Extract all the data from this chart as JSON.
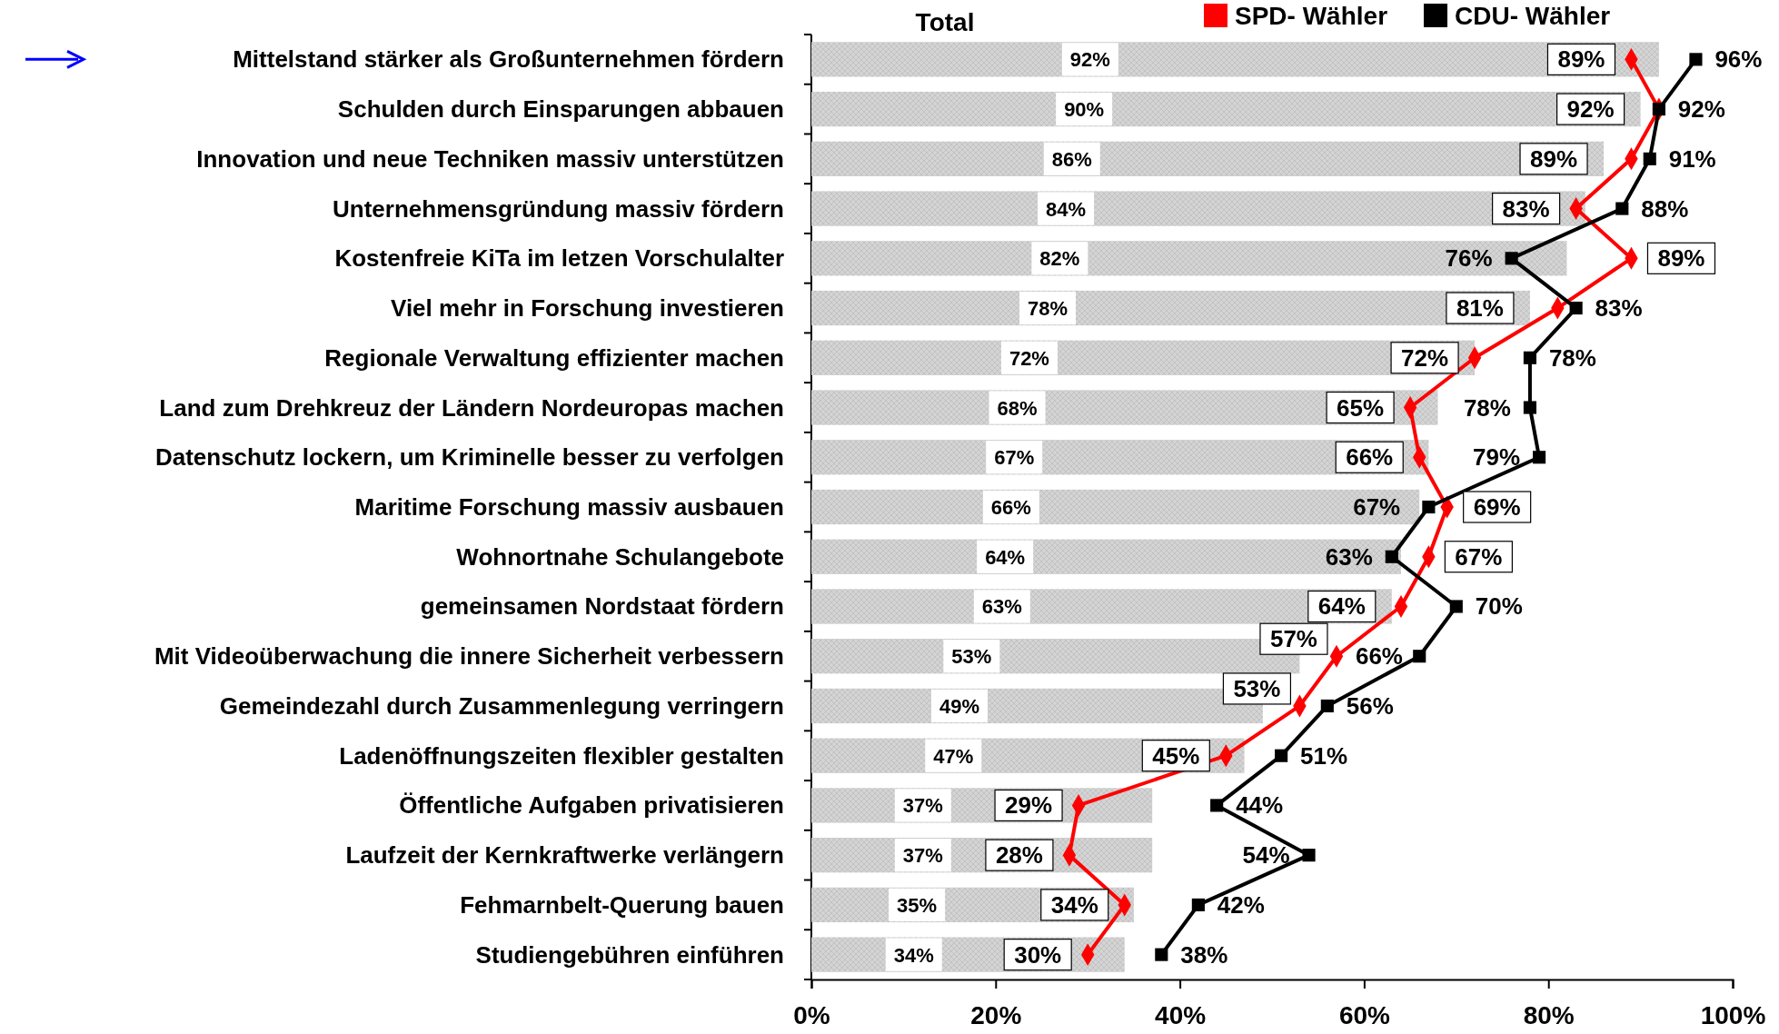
{
  "chart_data": {
    "type": "bar",
    "orientation": "horizontal",
    "title": "Total",
    "categories": [
      "Mittelstand stärker als Großunternehmen fördern",
      "Schulden durch Einsparungen abbauen",
      "Innovation und neue Techniken massiv unterstützen",
      "Unternehmensgründung massiv fördern",
      "Kostenfreie KiTa im letzen Vorschulalter",
      "Viel mehr in Forschung investieren",
      "Regionale Verwaltung effizienter machen",
      "Land zum Drehkreuz der Ländern Nordeuropas machen",
      "Datenschutz lockern, um Kriminelle besser zu verfolgen",
      "Maritime Forschung massiv ausbauen",
      "Wohnortnahe Schulangebote",
      "gemeinsamen Nordstaat fördern",
      "Mit Videoüberwachung die innere Sicherheit verbessern",
      "Gemeindezahl durch Zusammenlegung verringern",
      "Ladenöffnungszeiten flexibler gestalten",
      "Öffentliche Aufgaben privatisieren",
      "Laufzeit der Kernkraftwerke verlängern",
      "Fehmarnbelt-Querung bauen",
      "Studiengebühren einführen"
    ],
    "series": [
      {
        "color": "#d4d4d4",
        "values": [
          92,
          90,
          86,
          84,
          82,
          78,
          72,
          68,
          67,
          66,
          64,
          63,
          53,
          49,
          47,
          37,
          37,
          35,
          34
        ],
        "value_labels": [
          "92%",
          "90%",
          "86%",
          "84%",
          "82%",
          "78%",
          "72%",
          "68%",
          "67%",
          "66%",
          "64%",
          "63%",
          "53%",
          "49%",
          "47%",
          "37%",
          "37%",
          "35%",
          "34%"
        ]
      },
      {
        "type": "line",
        "name": "SPD- Wähler",
        "color": "#ff0000",
        "marker": "diamond",
        "values": [
          89,
          92,
          89,
          83,
          89,
          81,
          72,
          65,
          66,
          69,
          67,
          64,
          57,
          53,
          45,
          29,
          28,
          34,
          30
        ],
        "value_labels": [
          "89%",
          "92%",
          "89%",
          "83%",
          "89%",
          "81%",
          "72%",
          "65%",
          "66%",
          "69%",
          "67%",
          "64%",
          "57%",
          "53%",
          "45%",
          "29%",
          "28%",
          "34%",
          "30%"
        ]
      },
      {
        "type": "line",
        "name": "CDU- Wähler",
        "color": "#000000",
        "marker": "square",
        "values": [
          96,
          92,
          91,
          88,
          76,
          83,
          78,
          78,
          79,
          67,
          63,
          70,
          66,
          56,
          51,
          44,
          54,
          42,
          38
        ],
        "value_labels": [
          "96%",
          "92%",
          "91%",
          "88%",
          "76%",
          "83%",
          "78%",
          "78%",
          "79%",
          "67%",
          "63%",
          "70%",
          "66%",
          "56%",
          "51%",
          "44%",
          "54%",
          "42%",
          "38%"
        ]
      }
    ],
    "xlim": [
      0,
      100
    ],
    "xticks": [
      {
        "value": 0,
        "label": "0%"
      },
      {
        "value": 20,
        "label": "20%"
      },
      {
        "value": 40,
        "label": "40%"
      },
      {
        "value": 60,
        "label": "60%"
      },
      {
        "value": 80,
        "label": "80%"
      },
      {
        "value": 100,
        "label": "100%"
      }
    ],
    "legend": "top right"
  }
}
